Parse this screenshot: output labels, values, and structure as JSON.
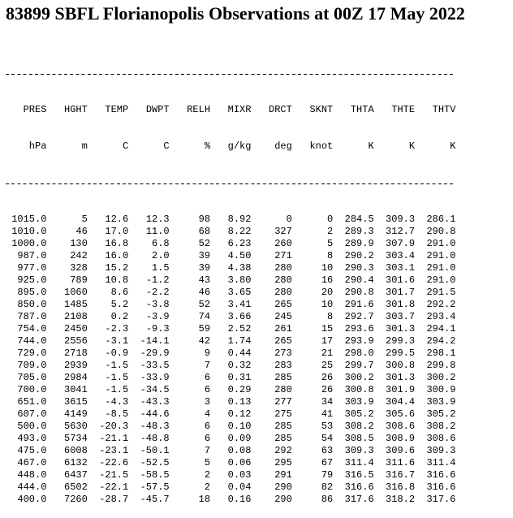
{
  "title": "83899 SBFL Florianopolis Observations at 00Z 17 May 2022",
  "table": {
    "columns": [
      {
        "name": "PRES",
        "unit": "hPa"
      },
      {
        "name": "HGHT",
        "unit": "m"
      },
      {
        "name": "TEMP",
        "unit": "C"
      },
      {
        "name": "DWPT",
        "unit": "C"
      },
      {
        "name": "RELH",
        "unit": "%"
      },
      {
        "name": "MIXR",
        "unit": "g/kg"
      },
      {
        "name": "DRCT",
        "unit": "deg"
      },
      {
        "name": "SKNT",
        "unit": "knot"
      },
      {
        "name": "THTA",
        "unit": "K"
      },
      {
        "name": "THTE",
        "unit": "K"
      },
      {
        "name": "THTV",
        "unit": "K"
      }
    ],
    "rows": [
      [
        "1015.0",
        "5",
        "12.6",
        "12.3",
        "98",
        "8.92",
        "0",
        "0",
        "284.5",
        "309.3",
        "286.1"
      ],
      [
        "1010.0",
        "46",
        "17.0",
        "11.0",
        "68",
        "8.22",
        "327",
        "2",
        "289.3",
        "312.7",
        "290.8"
      ],
      [
        "1000.0",
        "130",
        "16.8",
        "6.8",
        "52",
        "6.23",
        "260",
        "5",
        "289.9",
        "307.9",
        "291.0"
      ],
      [
        "987.0",
        "242",
        "16.0",
        "2.0",
        "39",
        "4.50",
        "271",
        "8",
        "290.2",
        "303.4",
        "291.0"
      ],
      [
        "977.0",
        "328",
        "15.2",
        "1.5",
        "39",
        "4.38",
        "280",
        "10",
        "290.3",
        "303.1",
        "291.0"
      ],
      [
        "925.0",
        "789",
        "10.8",
        "-1.2",
        "43",
        "3.80",
        "280",
        "16",
        "290.4",
        "301.6",
        "291.0"
      ],
      [
        "895.0",
        "1060",
        "8.6",
        "-2.2",
        "46",
        "3.65",
        "280",
        "20",
        "290.8",
        "301.7",
        "291.5"
      ],
      [
        "850.0",
        "1485",
        "5.2",
        "-3.8",
        "52",
        "3.41",
        "265",
        "10",
        "291.6",
        "301.8",
        "292.2"
      ],
      [
        "787.0",
        "2108",
        "0.2",
        "-3.9",
        "74",
        "3.66",
        "245",
        "8",
        "292.7",
        "303.7",
        "293.4"
      ],
      [
        "754.0",
        "2450",
        "-2.3",
        "-9.3",
        "59",
        "2.52",
        "261",
        "15",
        "293.6",
        "301.3",
        "294.1"
      ],
      [
        "744.0",
        "2556",
        "-3.1",
        "-14.1",
        "42",
        "1.74",
        "265",
        "17",
        "293.9",
        "299.3",
        "294.2"
      ],
      [
        "729.0",
        "2718",
        "-0.9",
        "-29.9",
        "9",
        "0.44",
        "273",
        "21",
        "298.0",
        "299.5",
        "298.1"
      ],
      [
        "709.0",
        "2939",
        "-1.5",
        "-33.5",
        "7",
        "0.32",
        "283",
        "25",
        "299.7",
        "300.8",
        "299.8"
      ],
      [
        "705.0",
        "2984",
        "-1.5",
        "-33.9",
        "6",
        "0.31",
        "285",
        "26",
        "300.2",
        "301.3",
        "300.2"
      ],
      [
        "700.0",
        "3041",
        "-1.5",
        "-34.5",
        "6",
        "0.29",
        "280",
        "26",
        "300.8",
        "301.9",
        "300.9"
      ],
      [
        "651.0",
        "3615",
        "-4.3",
        "-43.3",
        "3",
        "0.13",
        "277",
        "34",
        "303.9",
        "304.4",
        "303.9"
      ],
      [
        "607.0",
        "4149",
        "-8.5",
        "-44.6",
        "4",
        "0.12",
        "275",
        "41",
        "305.2",
        "305.6",
        "305.2"
      ],
      [
        "500.0",
        "5630",
        "-20.3",
        "-48.3",
        "6",
        "0.10",
        "285",
        "53",
        "308.2",
        "308.6",
        "308.2"
      ],
      [
        "493.0",
        "5734",
        "-21.1",
        "-48.8",
        "6",
        "0.09",
        "285",
        "54",
        "308.5",
        "308.9",
        "308.6"
      ],
      [
        "475.0",
        "6008",
        "-23.1",
        "-50.1",
        "7",
        "0.08",
        "292",
        "63",
        "309.3",
        "309.6",
        "309.3"
      ],
      [
        "467.0",
        "6132",
        "-22.6",
        "-52.5",
        "5",
        "0.06",
        "295",
        "67",
        "311.4",
        "311.6",
        "311.4"
      ],
      [
        "448.0",
        "6437",
        "-21.5",
        "-58.5",
        "2",
        "0.03",
        "291",
        "79",
        "316.5",
        "316.7",
        "316.6"
      ],
      [
        "444.0",
        "6502",
        "-22.1",
        "-57.5",
        "2",
        "0.04",
        "290",
        "82",
        "316.6",
        "316.8",
        "316.6"
      ],
      [
        "400.0",
        "7260",
        "-28.7",
        "-45.7",
        "18",
        "0.16",
        "290",
        "86",
        "317.6",
        "318.2",
        "317.6"
      ]
    ]
  }
}
